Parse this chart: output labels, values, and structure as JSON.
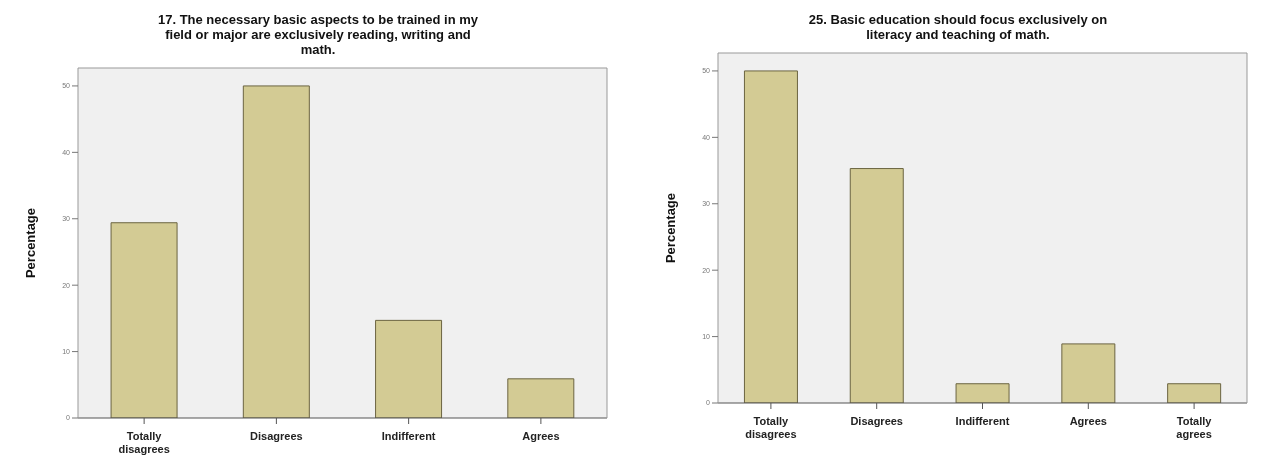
{
  "chart_data": [
    {
      "type": "bar",
      "title": "17. The necessary basic aspects to be trained in my field or major are exclusively reading, writing and math.",
      "ylabel": "Percentage",
      "categories": [
        "Totally disagrees",
        "Disagrees",
        "Indifferent",
        "Agrees"
      ],
      "values": [
        29.4,
        50,
        14.7,
        5.9
      ],
      "color": "#d3cb94",
      "ylim": [
        0,
        52.7
      ],
      "yticks": [
        0,
        10,
        20,
        30,
        40,
        50
      ],
      "grid": false,
      "legend": false
    },
    {
      "type": "bar",
      "title": "25. Basic education should focus exclusively on literacy and teaching of math.",
      "ylabel": "Percentage",
      "categories": [
        "Totally disagrees",
        "Disagrees",
        "Indifferent",
        "Agrees",
        "Totally agrees"
      ],
      "values": [
        50,
        35.3,
        2.9,
        8.9,
        2.9
      ],
      "color": "#d3cb94",
      "ylim": [
        0,
        52.7
      ],
      "yticks": [
        0,
        10,
        20,
        30,
        40,
        50
      ],
      "grid": false,
      "legend": false
    }
  ]
}
